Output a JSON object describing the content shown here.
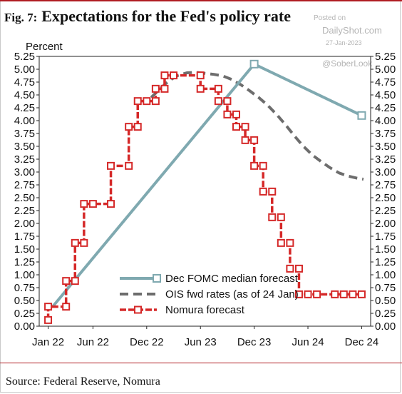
{
  "header": {
    "fig_label": "Fig. 7:",
    "title": "Expectations for the Fed's policy rate"
  },
  "watermark": {
    "posted": "Posted on",
    "site": "DailyShot.com",
    "date": "27-Jan-2023",
    "handle": "@SoberLook"
  },
  "source": "Source: Federal Reserve, Nomura",
  "colors": {
    "fomc": "#7fa9b0",
    "ois": "#6d6d6d",
    "nomura": "#d52828",
    "title_rule": "#b01c22"
  },
  "chart_data": {
    "type": "line",
    "ylabel": "Percent",
    "ylim": [
      0,
      5.25
    ],
    "yticks": [
      "0.00",
      "0.25",
      "0.50",
      "0.75",
      "1.00",
      "1.25",
      "1.50",
      "1.75",
      "2.00",
      "2.25",
      "2.50",
      "2.75",
      "3.00",
      "3.25",
      "3.50",
      "3.75",
      "4.00",
      "4.25",
      "4.50",
      "4.75",
      "5.00",
      "5.25"
    ],
    "xticks": [
      "Jan 22",
      "Jun 22",
      "Dec 22",
      "Jun 23",
      "Dec 23",
      "Jun 24",
      "Dec 24"
    ],
    "xtick_months": [
      0,
      5,
      11,
      17,
      23,
      29,
      35
    ],
    "xlim": [
      -1,
      36
    ],
    "legend": {
      "position": "bottom-center",
      "entries": [
        "Dec FOMC median forecast",
        "OIS fwd rates (as of 24 Jan)",
        "Nomura forecast"
      ]
    },
    "series": [
      {
        "name": "Dec FOMC median forecast",
        "style": "solid-with-square-markers",
        "x": [
          0.5,
          23,
          35
        ],
        "y": [
          0.38,
          5.1,
          4.1
        ],
        "markers": [
          false,
          true,
          true
        ]
      },
      {
        "name": "OIS fwd rates (as of 24 Jan)",
        "style": "dashed",
        "x": [
          11.5,
          12.5,
          13.5,
          14.5,
          15.5,
          16.5,
          17.5,
          18.5,
          19.5,
          20.5,
          21.5,
          22.5,
          23.5,
          24.5,
          25.5,
          26.5,
          27.5,
          28.5,
          29.5,
          30.5,
          31.5,
          32.5,
          33.5,
          34.5,
          35.2
        ],
        "y": [
          4.45,
          4.62,
          4.78,
          4.88,
          4.93,
          4.94,
          4.92,
          4.9,
          4.87,
          4.8,
          4.7,
          4.58,
          4.45,
          4.3,
          4.12,
          3.92,
          3.7,
          3.5,
          3.33,
          3.2,
          3.08,
          2.98,
          2.92,
          2.88,
          2.86
        ],
        "markers": []
      },
      {
        "name": "Nomura forecast",
        "style": "dashed-step-with-square-markers",
        "x": [
          0,
          0,
          2,
          2,
          3,
          3,
          4,
          4,
          5,
          5,
          7,
          7,
          9,
          9,
          10,
          10,
          11,
          11,
          12,
          12,
          13,
          13,
          14,
          14,
          17,
          17,
          19,
          19,
          20,
          20,
          21,
          21,
          22,
          22,
          23,
          23,
          24,
          24,
          25,
          25,
          26,
          26,
          27,
          27,
          28,
          28,
          29,
          29,
          30,
          30,
          32,
          32,
          33,
          33,
          34,
          34,
          35,
          35
        ],
        "y": [
          0.12,
          0.38,
          0.38,
          0.88,
          0.88,
          1.62,
          1.62,
          2.38,
          2.38,
          2.38,
          2.38,
          3.12,
          3.12,
          3.88,
          3.88,
          4.38,
          4.38,
          4.38,
          4.38,
          4.62,
          4.62,
          4.88,
          4.88,
          4.88,
          4.88,
          4.62,
          4.62,
          4.38,
          4.38,
          4.12,
          4.12,
          3.88,
          3.88,
          3.62,
          3.62,
          3.12,
          3.12,
          2.62,
          2.62,
          2.12,
          2.12,
          1.62,
          1.62,
          1.12,
          1.12,
          0.62,
          0.62,
          0.62,
          0.62,
          0.62,
          0.62,
          0.62,
          0.62,
          0.62,
          0.62,
          0.62,
          0.62,
          0.62
        ],
        "markers": []
      }
    ]
  }
}
